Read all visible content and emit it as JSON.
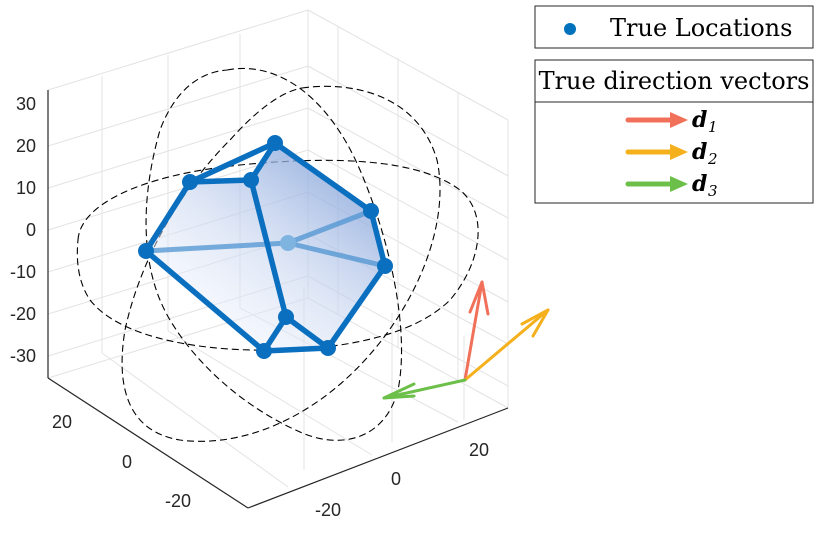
{
  "chart_data": {
    "type": "scatter",
    "projection": "3d",
    "title": "",
    "xlabel": "",
    "ylabel": "",
    "zlabel": "",
    "grid": true,
    "axis_ticks": {
      "x": [
        "-20",
        "0",
        "20"
      ],
      "y": [
        "20",
        "0",
        "-20"
      ],
      "z": [
        "30",
        "20",
        "10",
        "0",
        "-10",
        "-20",
        "-30"
      ]
    },
    "legend": {
      "points": {
        "label": "True Locations",
        "color": "#0072BD",
        "placement": "top-right"
      },
      "vectors": {
        "title": "True direction vectors",
        "items": [
          {
            "symbol": "d",
            "subscript": "1",
            "color": "#F0705A"
          },
          {
            "symbol": "d",
            "subscript": "2",
            "color": "#F5B01E"
          },
          {
            "symbol": "d",
            "subscript": "3",
            "color": "#6CC04A"
          }
        ]
      }
    },
    "series": [
      {
        "name": "True Locations",
        "kind": "points",
        "color": "#0072BD",
        "count": 12
      },
      {
        "name": "reference circles",
        "kind": "dashed-circles",
        "color": "#000000",
        "count": 3
      },
      {
        "name": "d1",
        "kind": "vector",
        "color": "#F0705A"
      },
      {
        "name": "d2",
        "kind": "vector",
        "color": "#F5B01E"
      },
      {
        "name": "d3",
        "kind": "vector",
        "color": "#6CC04A"
      }
    ]
  }
}
